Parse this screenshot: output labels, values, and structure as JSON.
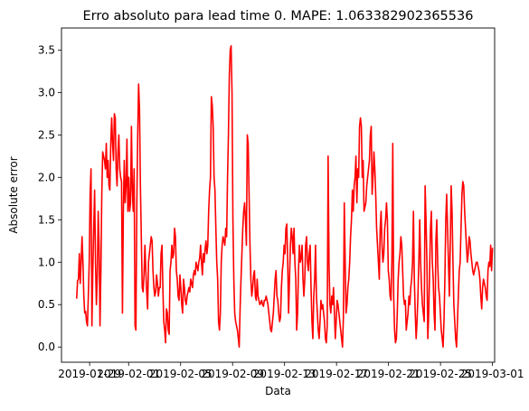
{
  "chart_data": {
    "type": "line",
    "title": "Erro absoluto para lead time 0. MAPE: 1.063382902365536",
    "xlabel": "Data",
    "ylabel": "Absolute error",
    "x_range": [
      "2019-01-26T20:00",
      "2019-03-01T04:00"
    ],
    "ylim": [
      -0.179,
      3.76
    ],
    "x_ticks": [
      "2019-01-29",
      "2019-02-01",
      "2019-02-05",
      "2019-02-09",
      "2019-02-13",
      "2019-02-17",
      "2019-02-21",
      "2019-02-25",
      "2019-03-01"
    ],
    "y_ticks": [
      "0.0",
      "0.5",
      "1.0",
      "1.5",
      "2.0",
      "2.5",
      "3.0",
      "3.5"
    ],
    "grid": false,
    "legend": "none",
    "series": [
      {
        "color": "#ff0000",
        "start": "2019-01-28T00:00",
        "end": "2019-03-01T00:00",
        "values": [
          0.57,
          0.78,
          0.8,
          1.1,
          0.75,
          1.0,
          1.3,
          1.0,
          0.6,
          0.4,
          0.42,
          0.3,
          0.25,
          0.6,
          1.0,
          1.8,
          2.1,
          0.25,
          0.9,
          1.4,
          1.85,
          1.0,
          0.5,
          0.85,
          1.6,
          1.2,
          0.25,
          0.9,
          1.8,
          2.3,
          2.25,
          2.2,
          2.1,
          2.4,
          2.0,
          2.2,
          1.9,
          1.85,
          2.4,
          2.7,
          2.4,
          2.2,
          2.75,
          2.7,
          2.1,
          1.9,
          2.3,
          2.5,
          2.1,
          2.0,
          1.95,
          0.4,
          1.6,
          2.2,
          1.7,
          1.9,
          2.45,
          1.6,
          2.0,
          1.6,
          1.7,
          2.6,
          1.85,
          1.6,
          2.1,
          0.25,
          0.2,
          1.7,
          2.5,
          3.1,
          2.8,
          1.9,
          1.3,
          0.7,
          0.65,
          0.85,
          1.2,
          0.9,
          0.65,
          0.45,
          1.0,
          1.1,
          1.2,
          1.3,
          1.25,
          0.9,
          0.7,
          0.6,
          0.65,
          0.85,
          0.75,
          0.6,
          0.7,
          0.7,
          1.1,
          1.2,
          0.7,
          0.3,
          0.2,
          0.05,
          0.45,
          0.4,
          0.2,
          0.15,
          0.9,
          1.0,
          1.2,
          1.05,
          1.1,
          1.4,
          1.3,
          0.9,
          0.8,
          0.6,
          0.55,
          0.85,
          0.7,
          0.5,
          0.4,
          0.8,
          0.7,
          0.55,
          0.5,
          0.6,
          0.65,
          0.7,
          0.65,
          0.8,
          0.75,
          0.7,
          0.85,
          0.9,
          0.85,
          1.0,
          0.95,
          0.9,
          1.0,
          1.05,
          1.2,
          1.0,
          0.85,
          1.1,
          1.0,
          1.15,
          1.25,
          1.1,
          1.2,
          1.6,
          1.85,
          2.0,
          2.95,
          2.85,
          2.6,
          2.0,
          1.85,
          1.4,
          1.0,
          0.8,
          0.3,
          0.2,
          0.4,
          1.0,
          1.2,
          1.3,
          1.25,
          1.2,
          1.4,
          1.3,
          2.0,
          2.5,
          3.2,
          3.5,
          3.55,
          3.0,
          1.5,
          0.8,
          0.4,
          0.3,
          0.25,
          0.2,
          0.1,
          0.0,
          0.45,
          0.8,
          1.1,
          1.4,
          1.6,
          1.7,
          1.5,
          1.2,
          2.5,
          2.4,
          1.8,
          1.2,
          0.8,
          0.6,
          0.7,
          0.85,
          0.9,
          0.6,
          0.55,
          0.8,
          0.6,
          0.55,
          0.5,
          0.52,
          0.55,
          0.5,
          0.48,
          0.55,
          0.55,
          0.6,
          0.55,
          0.5,
          0.4,
          0.3,
          0.2,
          0.18,
          0.3,
          0.4,
          0.6,
          0.8,
          0.9,
          0.6,
          0.55,
          0.4,
          0.3,
          0.35,
          0.7,
          0.9,
          1.0,
          1.2,
          1.1,
          1.4,
          1.45,
          1.0,
          0.4,
          0.8,
          1.2,
          1.4,
          1.3,
          1.1,
          1.4,
          1.0,
          0.8,
          0.2,
          0.4,
          0.9,
          1.2,
          1.0,
          1.05,
          1.2,
          0.8,
          0.6,
          0.8,
          1.2,
          1.3,
          1.0,
          0.9,
          1.1,
          1.2,
          0.7,
          0.3,
          0.1,
          0.6,
          0.8,
          1.2,
          0.6,
          0.4,
          0.2,
          0.1,
          0.3,
          0.55,
          0.45,
          0.5,
          0.4,
          0.3,
          0.1,
          0.05,
          0.25,
          2.25,
          1.0,
          0.5,
          0.4,
          0.6,
          0.5,
          0.7,
          0.4,
          0.1,
          0.3,
          0.55,
          0.5,
          0.4,
          0.3,
          0.2,
          0.1,
          0.0,
          0.35,
          1.7,
          1.0,
          0.4,
          0.5,
          0.7,
          0.8,
          1.0,
          1.3,
          1.5,
          1.85,
          1.6,
          1.9,
          2.0,
          2.25,
          1.7,
          2.1,
          2.0,
          2.6,
          2.7,
          2.6,
          2.0,
          2.2,
          1.6,
          1.65,
          1.7,
          1.9,
          2.0,
          2.1,
          2.2,
          2.5,
          2.6,
          1.8,
          2.0,
          2.3,
          2.1,
          1.8,
          1.4,
          1.2,
          1.0,
          0.8,
          1.4,
          1.6,
          1.2,
          1.0,
          1.1,
          1.4,
          1.5,
          1.7,
          1.5,
          0.9,
          0.8,
          0.6,
          0.55,
          1.0,
          2.4,
          0.6,
          0.2,
          0.05,
          0.1,
          0.4,
          0.8,
          1.0,
          1.1,
          1.3,
          1.2,
          0.9,
          0.6,
          0.5,
          0.55,
          0.2,
          0.3,
          0.4,
          0.6,
          0.5,
          0.7,
          0.8,
          1.0,
          1.6,
          0.8,
          0.4,
          0.1,
          0.3,
          0.6,
          1.0,
          1.5,
          1.0,
          0.7,
          0.5,
          0.4,
          0.3,
          1.9,
          1.5,
          1.0,
          0.1,
          0.4,
          0.9,
          1.4,
          1.6,
          1.0,
          0.8,
          0.4,
          0.2,
          1.25,
          1.5,
          1.0,
          0.7,
          0.6,
          0.4,
          0.2,
          0.1,
          0.0,
          0.3,
          0.8,
          1.5,
          1.8,
          1.4,
          1.0,
          0.6,
          1.2,
          1.9,
          1.6,
          1.0,
          0.5,
          0.3,
          0.1,
          0.0,
          0.3,
          0.6,
          0.9,
          1.0,
          1.4,
          1.8,
          1.95,
          1.9,
          1.6,
          1.4,
          1.2,
          1.0,
          1.1,
          1.3,
          1.25,
          1.1,
          1.0,
          0.9,
          0.85,
          0.9,
          0.95,
          1.0,
          1.0,
          0.95,
          0.9,
          0.8,
          0.6,
          0.45,
          0.7,
          0.8,
          0.75,
          0.7,
          0.6,
          0.55,
          0.9,
          1.0,
          0.95,
          1.2,
          0.9,
          1.17
        ]
      }
    ]
  }
}
